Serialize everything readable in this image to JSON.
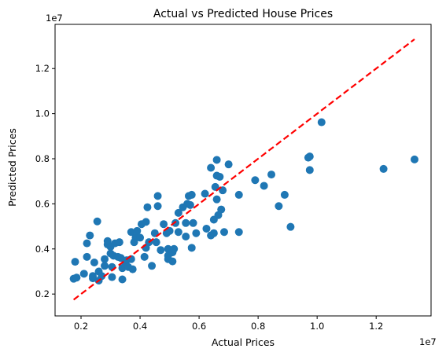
{
  "chart_data": {
    "type": "scatter",
    "title": "Actual vs Predicted House Prices",
    "xlabel": "Actual Prices",
    "ylabel": "Predicted Prices",
    "x_offset_text": "1e7",
    "y_offset_text": "1e7",
    "xlim": [
      1.12,
      13.86
    ],
    "ylim": [
      1.03,
      13.96
    ],
    "x_ticks": [
      2,
      4,
      6,
      8,
      10,
      12
    ],
    "y_ticks": [
      2,
      4,
      6,
      8,
      10,
      12
    ],
    "x_tick_labels": [
      "0.2",
      "0.4",
      "0.6",
      "0.8",
      "1.0",
      "1.2"
    ],
    "y_tick_labels": [
      "0.2",
      "0.4",
      "0.6",
      "0.8",
      "1.0",
      "1.2"
    ],
    "grid": false,
    "point_color": "#1f77b4",
    "reference_line": {
      "x": [
        1.75,
        13.3
      ],
      "y": [
        1.75,
        13.3
      ],
      "color": "#ff0000",
      "style": "dashed"
    },
    "points": [
      [
        1.75,
        2.68
      ],
      [
        1.8,
        3.43
      ],
      [
        1.85,
        2.73
      ],
      [
        2.1,
        2.9
      ],
      [
        2.2,
        3.65
      ],
      [
        2.2,
        4.25
      ],
      [
        2.3,
        4.6
      ],
      [
        2.4,
        2.7
      ],
      [
        2.4,
        2.8
      ],
      [
        2.45,
        3.4
      ],
      [
        2.55,
        5.22
      ],
      [
        2.6,
        2.6
      ],
      [
        2.6,
        3.0
      ],
      [
        2.7,
        2.8
      ],
      [
        2.8,
        3.25
      ],
      [
        2.8,
        3.55
      ],
      [
        2.9,
        4.2
      ],
      [
        2.9,
        4.35
      ],
      [
        3.0,
        3.8
      ],
      [
        3.0,
        4.1
      ],
      [
        3.05,
        2.75
      ],
      [
        3.05,
        3.2
      ],
      [
        3.1,
        3.7
      ],
      [
        3.15,
        4.25
      ],
      [
        3.25,
        3.65
      ],
      [
        3.3,
        4.3
      ],
      [
        3.35,
        3.6
      ],
      [
        3.4,
        2.65
      ],
      [
        3.4,
        3.15
      ],
      [
        3.5,
        3.25
      ],
      [
        3.55,
        3.5
      ],
      [
        3.6,
        3.2
      ],
      [
        3.7,
        3.55
      ],
      [
        3.7,
        4.75
      ],
      [
        3.75,
        3.1
      ],
      [
        3.8,
        4.3
      ],
      [
        3.85,
        4.5
      ],
      [
        3.9,
        4.8
      ],
      [
        4.0,
        4.5
      ],
      [
        4.05,
        5.1
      ],
      [
        4.15,
        3.65
      ],
      [
        4.2,
        4.05
      ],
      [
        4.2,
        5.2
      ],
      [
        4.25,
        5.85
      ],
      [
        4.3,
        4.3
      ],
      [
        4.4,
        3.25
      ],
      [
        4.5,
        4.7
      ],
      [
        4.55,
        4.3
      ],
      [
        4.6,
        5.9
      ],
      [
        4.6,
        6.35
      ],
      [
        4.7,
        3.95
      ],
      [
        4.8,
        5.1
      ],
      [
        4.9,
        4.7
      ],
      [
        4.95,
        3.55
      ],
      [
        4.95,
        3.7
      ],
      [
        4.95,
        4.0
      ],
      [
        5.0,
        4.8
      ],
      [
        5.1,
        3.45
      ],
      [
        5.1,
        3.85
      ],
      [
        5.15,
        4.0
      ],
      [
        5.2,
        5.15
      ],
      [
        5.3,
        5.6
      ],
      [
        5.3,
        4.75
      ],
      [
        5.45,
        5.85
      ],
      [
        5.55,
        4.55
      ],
      [
        5.55,
        5.15
      ],
      [
        5.6,
        6.0
      ],
      [
        5.65,
        6.35
      ],
      [
        5.7,
        5.95
      ],
      [
        5.75,
        4.05
      ],
      [
        5.75,
        6.4
      ],
      [
        5.8,
        5.15
      ],
      [
        5.9,
        4.7
      ],
      [
        6.2,
        6.45
      ],
      [
        6.25,
        4.9
      ],
      [
        6.4,
        4.6
      ],
      [
        6.4,
        7.6
      ],
      [
        6.5,
        5.3
      ],
      [
        6.5,
        4.7
      ],
      [
        6.55,
        6.75
      ],
      [
        6.6,
        7.95
      ],
      [
        6.6,
        7.25
      ],
      [
        6.6,
        6.2
      ],
      [
        6.65,
        5.5
      ],
      [
        6.7,
        7.2
      ],
      [
        6.75,
        5.75
      ],
      [
        6.8,
        6.6
      ],
      [
        6.85,
        4.75
      ],
      [
        7.0,
        7.75
      ],
      [
        7.35,
        6.4
      ],
      [
        7.35,
        4.75
      ],
      [
        7.9,
        7.05
      ],
      [
        8.2,
        6.8
      ],
      [
        8.45,
        7.3
      ],
      [
        8.7,
        5.9
      ],
      [
        8.9,
        6.4
      ],
      [
        9.1,
        4.98
      ],
      [
        9.7,
        8.05
      ],
      [
        9.75,
        8.1
      ],
      [
        9.75,
        7.5
      ],
      [
        10.15,
        9.62
      ],
      [
        12.25,
        7.55
      ],
      [
        13.3,
        7.97
      ]
    ]
  }
}
